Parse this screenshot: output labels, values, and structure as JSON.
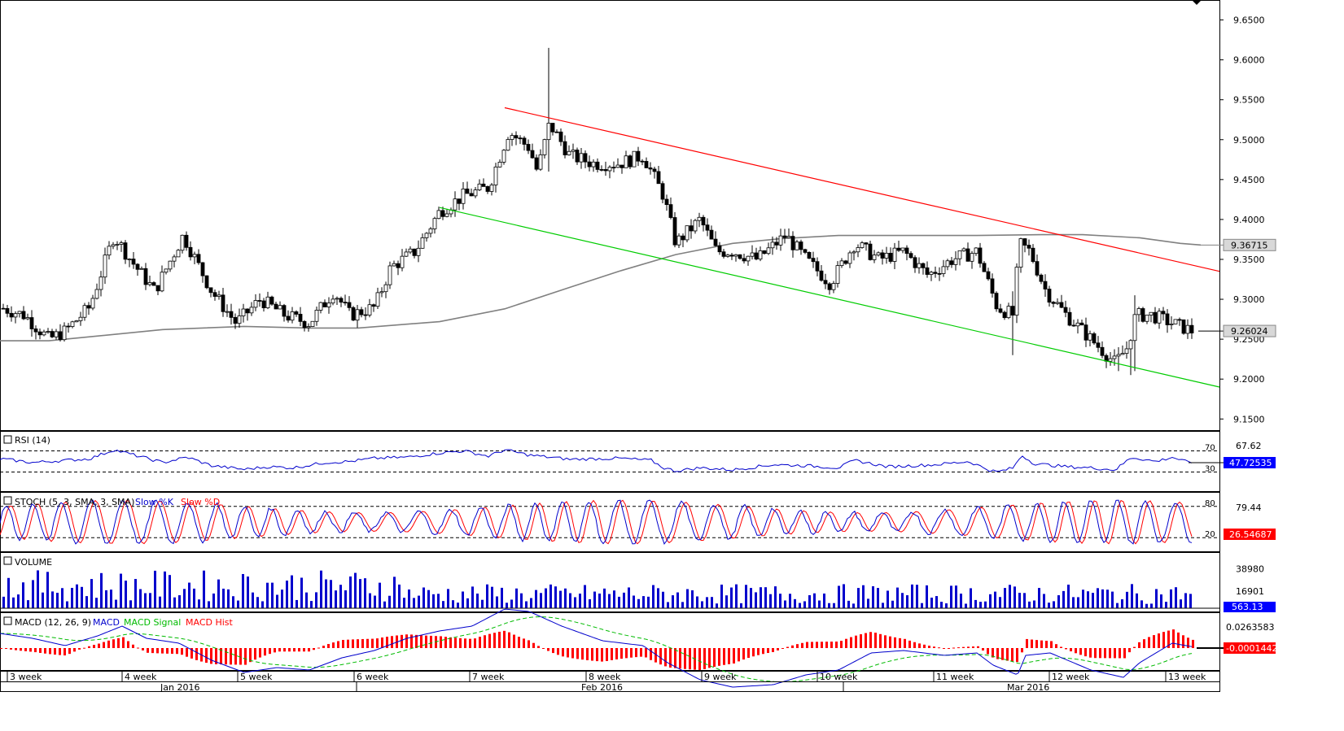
{
  "colors": {
    "candle": "#000000",
    "sma": "#808080",
    "upper_trend": "#ff0000",
    "lower_trend": "#00cc00",
    "rsi": "#0000cc",
    "stoch_k": "#0000cc",
    "stoch_d": "#ff0000",
    "volume": "#0000cc",
    "macd": "#0000cc",
    "macd_signal": "#00bb00",
    "macd_hist": "#ff0000",
    "last_price_box": "#d8d8d8",
    "neg_box": "#ff0000"
  },
  "chart_data": {
    "type": "candlestick",
    "price_axis": {
      "ticks": [
        "9.6500",
        "9.6000",
        "9.5500",
        "9.5000",
        "9.4500",
        "9.4000",
        "9.3500",
        "9.3000",
        "9.2500",
        "9.2000",
        "9.1500"
      ],
      "ylim": [
        9.135,
        9.675
      ]
    },
    "sma_label": "9.36715",
    "last_price_label": "9.26024",
    "sma": [
      [
        0,
        9.248
      ],
      [
        60,
        9.248
      ],
      [
        100,
        9.252
      ],
      [
        200,
        9.262
      ],
      [
        300,
        9.266
      ],
      [
        380,
        9.264
      ],
      [
        440,
        9.264
      ],
      [
        540,
        9.272
      ],
      [
        620,
        9.288
      ],
      [
        700,
        9.315
      ],
      [
        760,
        9.335
      ],
      [
        830,
        9.356
      ],
      [
        900,
        9.37
      ],
      [
        960,
        9.376
      ],
      [
        1030,
        9.38
      ],
      [
        1110,
        9.38
      ],
      [
        1200,
        9.38
      ],
      [
        1280,
        9.381
      ],
      [
        1330,
        9.381
      ],
      [
        1400,
        9.377
      ],
      [
        1450,
        9.37
      ],
      [
        1475,
        9.368
      ]
    ],
    "ohlc_anchors": [
      [
        0,
        9.29
      ],
      [
        30,
        9.28
      ],
      [
        60,
        9.25
      ],
      [
        80,
        9.26
      ],
      [
        110,
        9.29
      ],
      [
        140,
        9.38
      ],
      [
        160,
        9.35
      ],
      [
        190,
        9.31
      ],
      [
        225,
        9.38
      ],
      [
        260,
        9.31
      ],
      [
        290,
        9.27
      ],
      [
        320,
        9.3
      ],
      [
        350,
        9.28
      ],
      [
        380,
        9.27
      ],
      [
        410,
        9.31
      ],
      [
        430,
        9.28
      ],
      [
        460,
        9.29
      ],
      [
        480,
        9.34
      ],
      [
        510,
        9.36
      ],
      [
        540,
        9.41
      ],
      [
        570,
        9.43
      ],
      [
        600,
        9.44
      ],
      [
        625,
        9.51
      ],
      [
        650,
        9.49
      ],
      [
        660,
        9.46
      ],
      [
        675,
        9.52
      ],
      [
        700,
        9.48
      ],
      [
        730,
        9.47
      ],
      [
        760,
        9.47
      ],
      [
        790,
        9.48
      ],
      [
        815,
        9.43
      ],
      [
        830,
        9.37
      ],
      [
        860,
        9.4
      ],
      [
        880,
        9.36
      ],
      [
        900,
        9.36
      ],
      [
        930,
        9.35
      ],
      [
        965,
        9.38
      ],
      [
        990,
        9.35
      ],
      [
        1020,
        9.32
      ],
      [
        1050,
        9.37
      ],
      [
        1080,
        9.35
      ],
      [
        1110,
        9.36
      ],
      [
        1140,
        9.33
      ],
      [
        1170,
        9.35
      ],
      [
        1200,
        9.36
      ],
      [
        1225,
        9.29
      ],
      [
        1245,
        9.28
      ],
      [
        1252,
        9.37
      ],
      [
        1265,
        9.36
      ],
      [
        1285,
        9.31
      ],
      [
        1310,
        9.28
      ],
      [
        1340,
        9.25
      ],
      [
        1370,
        9.22
      ],
      [
        1385,
        9.24
      ],
      [
        1395,
        9.28
      ],
      [
        1415,
        9.28
      ],
      [
        1440,
        9.27
      ],
      [
        1465,
        9.26
      ]
    ],
    "spikes": [
      {
        "x": 672,
        "high": 9.615,
        "low": 9.46
      },
      {
        "x": 1246,
        "high": 9.31,
        "low": 9.23
      },
      {
        "x": 1396,
        "high": 9.305,
        "low": 9.21
      },
      {
        "x": 1390,
        "high": 9.25,
        "low": 9.205
      },
      {
        "x": 1372,
        "high": 9.24,
        "low": 9.21
      }
    ],
    "upper_trendline": [
      [
        620,
        9.54
      ],
      [
        1498,
        9.335
      ]
    ],
    "lower_trendline": [
      [
        540,
        9.415
      ],
      [
        1498,
        9.19
      ]
    ],
    "rsi": {
      "label": "RSI (14)",
      "right_label": "67.62",
      "value_label": "47.72535",
      "upper_level": "70",
      "lower_level": "30",
      "anchors": [
        [
          0,
          55
        ],
        [
          40,
          48
        ],
        [
          80,
          52
        ],
        [
          110,
          55
        ],
        [
          140,
          72
        ],
        [
          170,
          60
        ],
        [
          200,
          48
        ],
        [
          230,
          58
        ],
        [
          260,
          42
        ],
        [
          300,
          35
        ],
        [
          330,
          40
        ],
        [
          360,
          38
        ],
        [
          400,
          48
        ],
        [
          430,
          50
        ],
        [
          460,
          56
        ],
        [
          500,
          58
        ],
        [
          540,
          66
        ],
        [
          570,
          70
        ],
        [
          600,
          60
        ],
        [
          620,
          72
        ],
        [
          650,
          62
        ],
        [
          700,
          54
        ],
        [
          760,
          56
        ],
        [
          800,
          52
        ],
        [
          815,
          38
        ],
        [
          830,
          32
        ],
        [
          860,
          38
        ],
        [
          900,
          34
        ],
        [
          950,
          44
        ],
        [
          990,
          42
        ],
        [
          1030,
          38
        ],
        [
          1050,
          52
        ],
        [
          1090,
          40
        ],
        [
          1150,
          44
        ],
        [
          1190,
          50
        ],
        [
          1215,
          34
        ],
        [
          1225,
          30
        ],
        [
          1245,
          38
        ],
        [
          1255,
          62
        ],
        [
          1270,
          46
        ],
        [
          1310,
          40
        ],
        [
          1340,
          38
        ],
        [
          1370,
          34
        ],
        [
          1390,
          58
        ],
        [
          1420,
          50
        ],
        [
          1440,
          58
        ],
        [
          1460,
          48
        ],
        [
          1475,
          47.7
        ]
      ]
    },
    "stoch": {
      "label": "STOCH (5, 3, SMA, 3, SMA)",
      "k_label": "Slow %K",
      "d_label": "Slow %D",
      "right_label": "79.44",
      "value_label": "26.54687",
      "upper_level": "80",
      "lower_level": "20",
      "period": 36
    },
    "volume": {
      "label": "VOLUME",
      "tick_high": "38980",
      "tick_low": "16901",
      "value_label": "563.13",
      "max": 52000
    },
    "macd": {
      "label": "MACD (12, 26, 9)",
      "macd_name": "MACD",
      "signal_name": "MACD Signal",
      "hist_name": "MACD Hist",
      "tick_label": "0.0263583",
      "value_label": "-0.0001442",
      "anchors": [
        [
          0,
          0.012
        ],
        [
          40,
          0.008
        ],
        [
          80,
          0.002
        ],
        [
          120,
          0.01
        ],
        [
          150,
          0.018
        ],
        [
          180,
          0.008
        ],
        [
          220,
          0.004
        ],
        [
          260,
          -0.01
        ],
        [
          300,
          -0.02
        ],
        [
          340,
          -0.016
        ],
        [
          380,
          -0.018
        ],
        [
          420,
          -0.008
        ],
        [
          460,
          -0.002
        ],
        [
          500,
          0.008
        ],
        [
          540,
          0.014
        ],
        [
          580,
          0.018
        ],
        [
          620,
          0.032
        ],
        [
          650,
          0.03
        ],
        [
          690,
          0.018
        ],
        [
          740,
          0.006
        ],
        [
          790,
          0.002
        ],
        [
          820,
          -0.012
        ],
        [
          860,
          -0.026
        ],
        [
          900,
          -0.032
        ],
        [
          950,
          -0.03
        ],
        [
          990,
          -0.022
        ],
        [
          1030,
          -0.018
        ],
        [
          1070,
          -0.004
        ],
        [
          1110,
          -0.002
        ],
        [
          1160,
          -0.006
        ],
        [
          1200,
          -0.004
        ],
        [
          1220,
          -0.014
        ],
        [
          1250,
          -0.022
        ],
        [
          1260,
          -0.006
        ],
        [
          1290,
          -0.004
        ],
        [
          1340,
          -0.018
        ],
        [
          1380,
          -0.024
        ],
        [
          1400,
          -0.012
        ],
        [
          1440,
          0.004
        ],
        [
          1475,
          -0.0001
        ]
      ]
    },
    "time_axis": {
      "weeks": [
        {
          "x": 12,
          "label": "3 week"
        },
        {
          "x": 153,
          "label": "4 week"
        },
        {
          "x": 295,
          "label": "5 week"
        },
        {
          "x": 438,
          "label": "6 week"
        },
        {
          "x": 580,
          "label": "7 week"
        },
        {
          "x": 723,
          "label": "8 week"
        },
        {
          "x": 865,
          "label": "9 week"
        },
        {
          "x": 1007,
          "label": "10 week"
        },
        {
          "x": 1150,
          "label": "11 week"
        },
        {
          "x": 1292,
          "label": "12 week"
        },
        {
          "x": 1435,
          "label": "13 week"
        }
      ],
      "months": [
        {
          "x": 219,
          "label": "Jan 2016"
        },
        {
          "x": 736,
          "label": "Feb 2016"
        },
        {
          "x": 1259,
          "label": "Mar 2016"
        }
      ]
    }
  }
}
